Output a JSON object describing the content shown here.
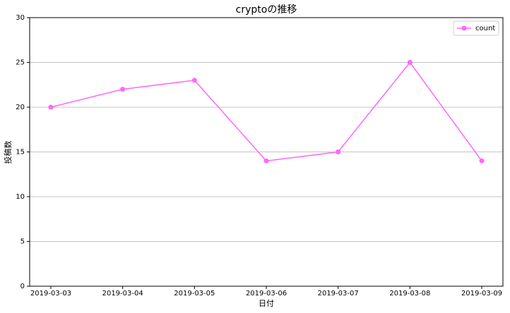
{
  "chart_data": {
    "type": "line",
    "title": "cryptoの推移",
    "xlabel": "日付",
    "ylabel": "投稿数",
    "x": [
      "2019-03-03",
      "2019-03-04",
      "2019-03-05",
      "2019-03-06",
      "2019-03-07",
      "2019-03-08",
      "2019-03-09"
    ],
    "series": [
      {
        "name": "count",
        "color": "#ff66ff",
        "values": [
          20,
          22,
          23,
          14,
          15,
          25,
          14
        ]
      }
    ],
    "ylim": [
      0,
      30
    ],
    "yticks": [
      0,
      5,
      10,
      15,
      20,
      25,
      30
    ],
    "grid": true,
    "legend": "upper right"
  }
}
